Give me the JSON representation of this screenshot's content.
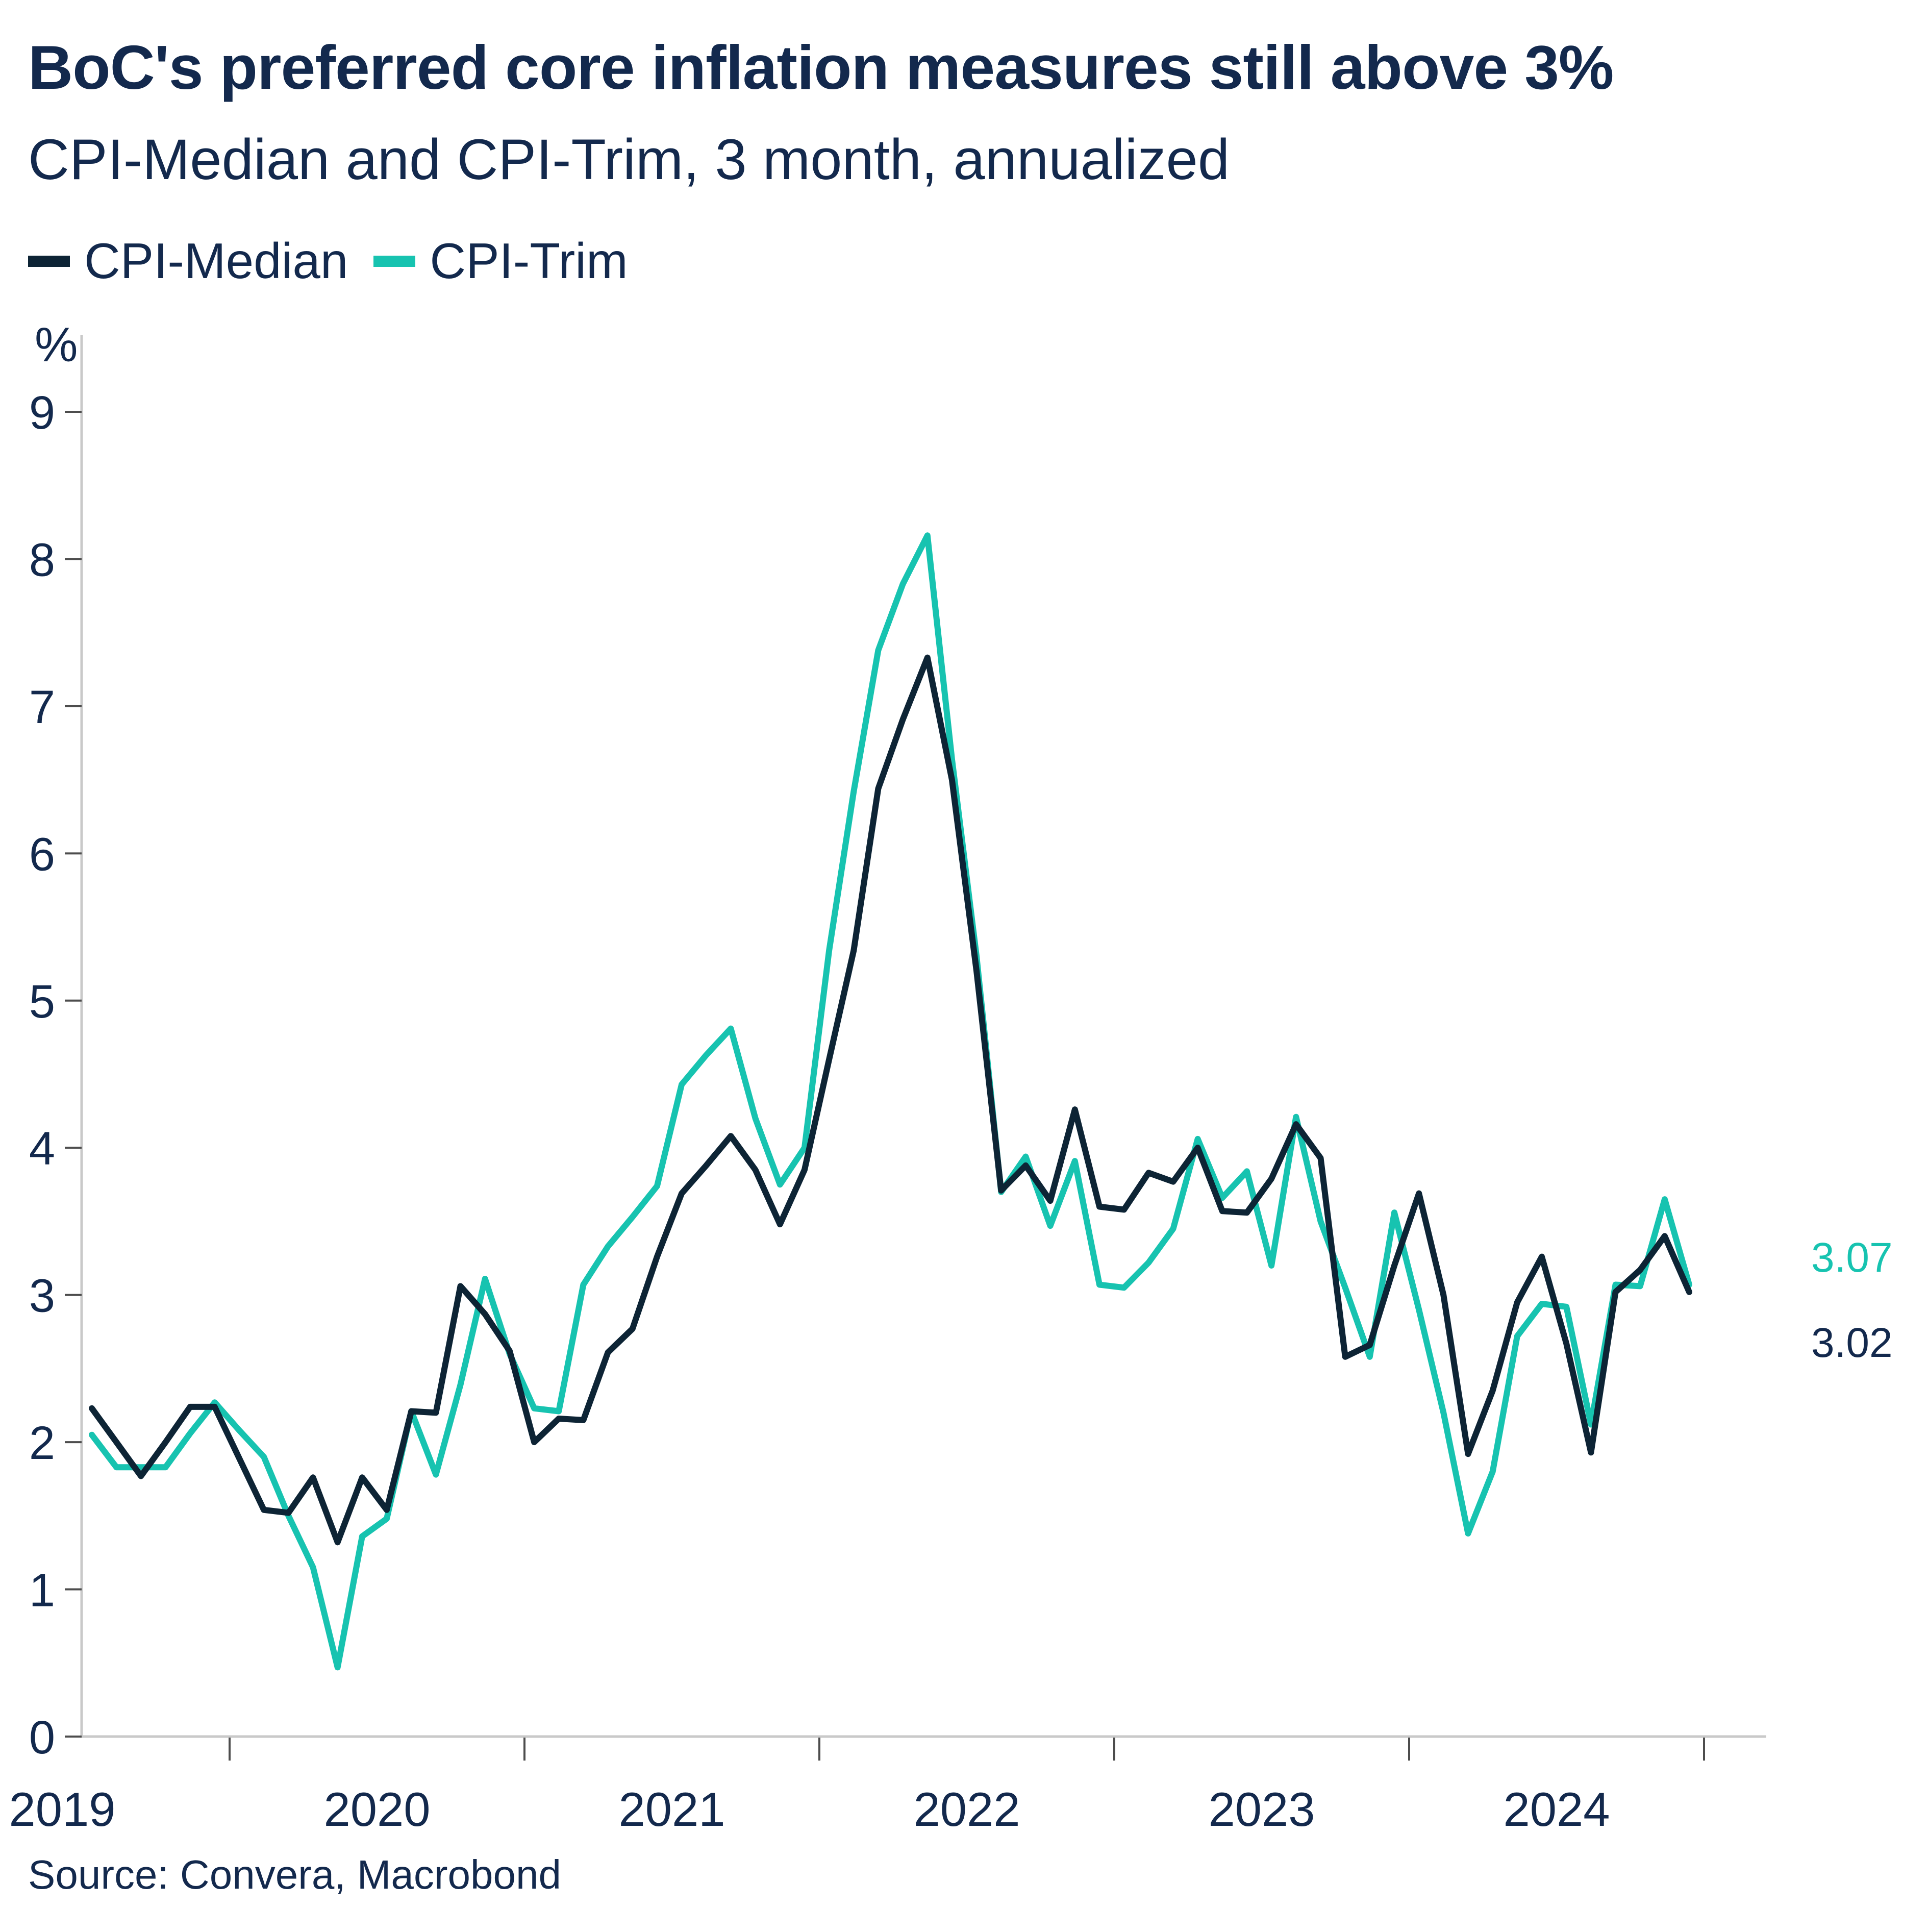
{
  "title": "BoC's preferred core inflation measures still above 3%",
  "subtitle": "CPI-Median and CPI-Trim, 3 month, annualized",
  "legend": [
    {
      "label": "CPI-Median",
      "color": "#0d2435"
    },
    {
      "label": "CPI-Trim",
      "color": "#17c3b0"
    }
  ],
  "y_axis": {
    "unit": "%",
    "ticks": [
      "0",
      "1",
      "2",
      "3",
      "4",
      "5",
      "6",
      "7",
      "8",
      "9"
    ]
  },
  "x_axis": {
    "year_labels": [
      "2019",
      "2020",
      "2021",
      "2022",
      "2023",
      "2024"
    ]
  },
  "end_labels": {
    "trim": {
      "text": "3.07",
      "color": "#17c3b0"
    },
    "median": {
      "text": "3.02",
      "color": "#13294d"
    }
  },
  "source": "Source: Convera, Macrobond",
  "colors": {
    "text_navy": "#13294d",
    "line_navy": "#0d2435",
    "teal": "#17c3b0",
    "axis_line": "#c9c9c9",
    "tick_mark": "#4d4d4d"
  },
  "chart_data": {
    "type": "line",
    "title": "BoC's preferred core inflation measures still above 3%",
    "subtitle": "CPI-Median and CPI-Trim, 3 month, annualized",
    "ylabel": "%",
    "ylim": [
      0,
      9
    ],
    "grid": false,
    "legend_position": "top-left",
    "x": [
      "2019-07",
      "2019-08",
      "2019-09",
      "2019-10",
      "2019-11",
      "2019-12",
      "2020-01",
      "2020-02",
      "2020-03",
      "2020-04",
      "2020-05",
      "2020-06",
      "2020-07",
      "2020-08",
      "2020-09",
      "2020-10",
      "2020-11",
      "2020-12",
      "2021-01",
      "2021-02",
      "2021-03",
      "2021-04",
      "2021-05",
      "2021-06",
      "2021-07",
      "2021-08",
      "2021-09",
      "2021-10",
      "2021-11",
      "2021-12",
      "2022-01",
      "2022-02",
      "2022-03",
      "2022-04",
      "2022-05",
      "2022-06",
      "2022-07",
      "2022-08",
      "2022-09",
      "2022-10",
      "2022-11",
      "2022-12",
      "2023-01",
      "2023-02",
      "2023-03",
      "2023-04",
      "2023-05",
      "2023-06",
      "2023-07",
      "2023-08",
      "2023-09",
      "2023-10",
      "2023-11",
      "2023-12",
      "2024-01",
      "2024-02",
      "2024-03",
      "2024-04",
      "2024-05",
      "2024-06",
      "2024-07",
      "2024-08",
      "2024-09",
      "2024-10",
      "2024-11",
      "2024-12"
    ],
    "series": [
      {
        "name": "CPI-Median",
        "color": "#0d2435",
        "last_value_label": "3.02",
        "values": [
          2.23,
          2.0,
          1.77,
          2.0,
          2.24,
          2.24,
          1.89,
          1.54,
          1.52,
          1.76,
          1.32,
          1.76,
          1.54,
          2.21,
          2.2,
          3.06,
          2.87,
          2.62,
          2.0,
          2.16,
          2.15,
          2.61,
          2.77,
          3.26,
          3.69,
          3.88,
          4.08,
          3.85,
          3.48,
          3.85,
          4.6,
          5.34,
          6.44,
          6.91,
          7.33,
          6.5,
          5.2,
          3.71,
          3.88,
          3.64,
          4.26,
          3.6,
          3.58,
          3.83,
          3.77,
          4.0,
          3.57,
          3.56,
          3.79,
          4.16,
          3.93,
          2.58,
          2.66,
          3.2,
          3.69,
          3.0,
          1.92,
          2.35,
          2.95,
          3.26,
          2.67,
          1.93,
          3.02,
          3.17,
          3.4,
          3.02
        ]
      },
      {
        "name": "CPI-Trim",
        "color": "#17c3b0",
        "last_value_label": "3.07",
        "values": [
          2.05,
          1.83,
          1.83,
          1.83,
          2.06,
          2.27,
          2.08,
          1.9,
          1.5,
          1.15,
          0.47,
          1.36,
          1.48,
          2.21,
          1.78,
          2.39,
          3.11,
          2.6,
          2.23,
          2.21,
          3.07,
          3.33,
          3.53,
          3.74,
          4.43,
          4.63,
          4.81,
          4.2,
          3.75,
          4.0,
          5.34,
          6.42,
          7.38,
          7.83,
          8.16,
          6.64,
          5.3,
          3.7,
          3.94,
          3.47,
          3.91,
          3.07,
          3.05,
          3.22,
          3.45,
          4.06,
          3.66,
          3.84,
          3.2,
          4.21,
          3.5,
          3.05,
          2.58,
          3.56,
          2.9,
          2.2,
          1.38,
          1.8,
          2.72,
          2.94,
          2.92,
          2.12,
          3.07,
          3.06,
          3.65,
          3.07
        ]
      }
    ]
  }
}
